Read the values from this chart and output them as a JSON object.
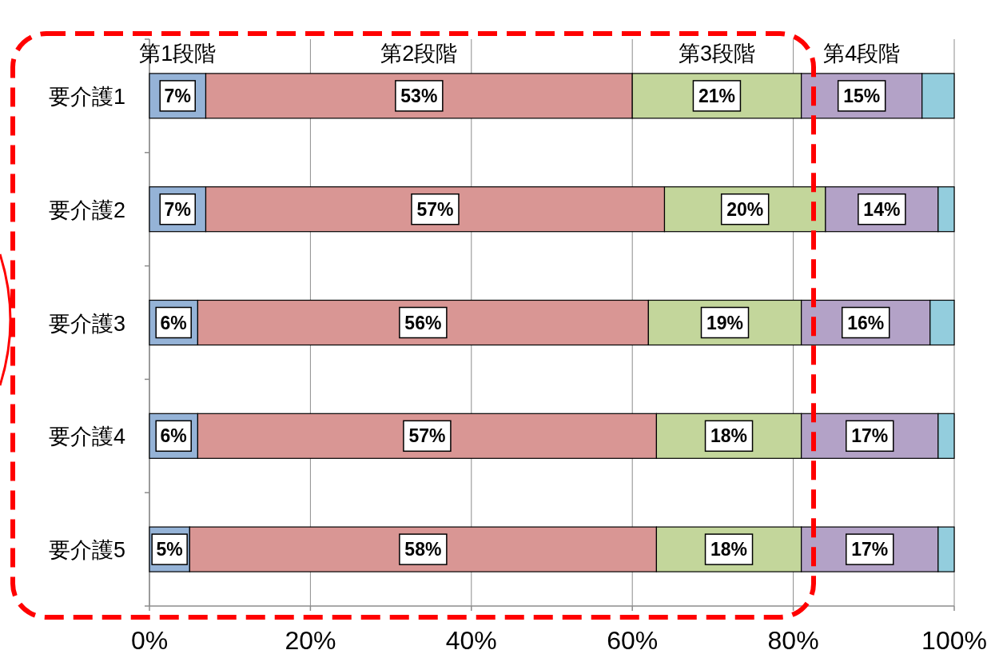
{
  "chart_data": {
    "type": "bar",
    "orientation": "horizontal",
    "stacked": true,
    "categories": [
      "要介護1",
      "要介護2",
      "要介護3",
      "要介護4",
      "要介護5"
    ],
    "series": [
      {
        "name": "第1段階",
        "color": "#95b3d7",
        "values": [
          7,
          7,
          6,
          6,
          5
        ],
        "value_labels": [
          "7%",
          "7%",
          "6%",
          "6%",
          "5%"
        ]
      },
      {
        "name": "第2段階",
        "color": "#d99694",
        "values": [
          53,
          57,
          56,
          57,
          58
        ],
        "value_labels": [
          "53%",
          "57%",
          "56%",
          "57%",
          "58%"
        ]
      },
      {
        "name": "第3段階",
        "color": "#c3d69b",
        "values": [
          21,
          20,
          19,
          18,
          18
        ],
        "value_labels": [
          "21%",
          "20%",
          "19%",
          "18%",
          "18%"
        ]
      },
      {
        "name": "第4段階",
        "color": "#b3a2c7",
        "values": [
          15,
          14,
          16,
          17,
          17
        ],
        "value_labels": [
          "15%",
          "14%",
          "16%",
          "17%",
          "17%"
        ]
      },
      {
        "color": "#93cddd",
        "values": [
          4,
          2,
          3,
          2,
          2
        ]
      }
    ],
    "xlim": [
      0,
      100
    ],
    "xticks": [
      {
        "value": 0,
        "label": "0%"
      },
      {
        "value": 20,
        "label": "20%"
      },
      {
        "value": 40,
        "label": "40%"
      },
      {
        "value": 60,
        "label": "60%"
      },
      {
        "value": 80,
        "label": "80%"
      },
      {
        "value": 100,
        "label": "100%"
      }
    ],
    "grid": "x"
  }
}
